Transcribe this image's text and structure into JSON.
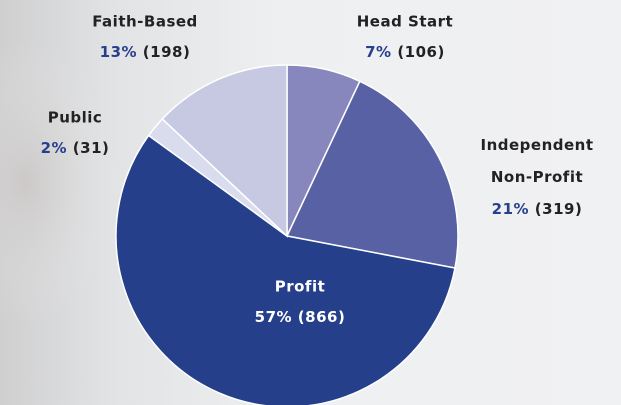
{
  "chart_data": {
    "type": "pie",
    "categories": [
      "Head Start",
      "Independent Non-Profit",
      "Profit",
      "Public",
      "Faith-Based"
    ],
    "values": [
      7,
      21,
      57,
      2,
      13
    ],
    "value_labels": [
      "7% (106)",
      "21% (319)",
      "57% (866)",
      "2% (31)",
      "13% (198)"
    ],
    "colors": [
      "#8787be",
      "#5961a5",
      "#263f8a",
      "#d9dced",
      "#c6c9e1"
    ]
  }
}
